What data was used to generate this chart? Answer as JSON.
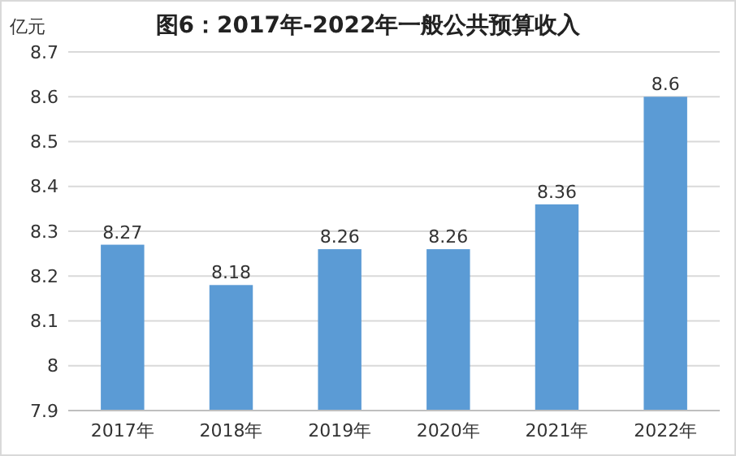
{
  "chart_data": {
    "type": "bar",
    "title": "图6：2017年-2022年一般公共预算收入",
    "ylabel": "亿元",
    "categories": [
      "2017年",
      "2018年",
      "2019年",
      "2020年",
      "2021年",
      "2022年"
    ],
    "values": [
      8.27,
      8.18,
      8.26,
      8.26,
      8.36,
      8.6
    ],
    "color": "#5b9bd5",
    "ylim": [
      7.9,
      8.7
    ],
    "yticks": [
      7.9,
      8,
      8.1,
      8.2,
      8.3,
      8.4,
      8.5,
      8.6,
      8.7
    ],
    "grid": "y",
    "data_labels": true
  }
}
